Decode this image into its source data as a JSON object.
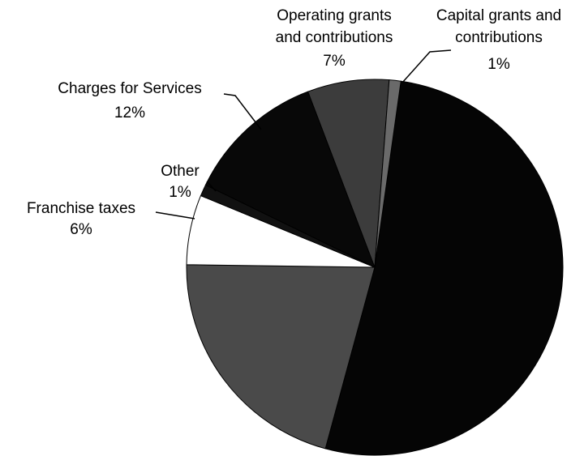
{
  "chart_data": {
    "type": "pie",
    "categories": [
      null,
      null,
      "Franchise taxes",
      "Other",
      "Charges for Services",
      "Operating grants and contributions",
      "Capital grants and contributions"
    ],
    "values": [
      52,
      21,
      6,
      1,
      12,
      7,
      1
    ],
    "value_labels": [
      null,
      null,
      "6%",
      "1%",
      "12%",
      "7%",
      "1%"
    ],
    "colors": [
      "#050505",
      "#4a4a4a",
      "#ffffff",
      "#111111",
      "#080808",
      "#3c3c3c",
      "#6a6a6a"
    ]
  }
}
